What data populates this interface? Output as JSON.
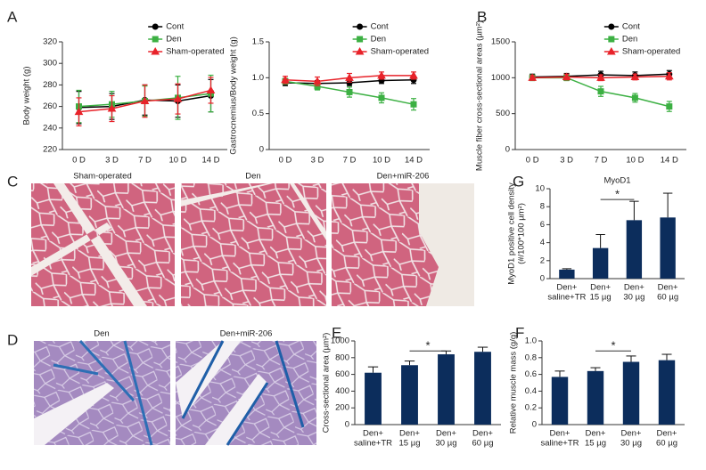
{
  "images": [
    {
      "panel": "C",
      "captions": [
        "Sham-operated",
        "Den",
        "Den+miR-206"
      ]
    },
    {
      "panel": "D",
      "captions": [
        "Den",
        "Den+miR-206"
      ]
    }
  ],
  "chart_data": [
    {
      "type": "line",
      "panel": "A",
      "ylabel": "Body weight (g)",
      "categories": [
        "0 D",
        "3 D",
        "7 D",
        "10 D",
        "14 D"
      ],
      "ylim": [
        220,
        320
      ],
      "yticks": [
        220,
        240,
        260,
        280,
        300,
        320
      ],
      "legend": "top",
      "series": [
        {
          "name": "Cont",
          "color": "#000000",
          "marker": "circle",
          "values": [
            259,
            260,
            266,
            265,
            270
          ],
          "errors": [
            15,
            12,
            14,
            15,
            15
          ]
        },
        {
          "name": "Den",
          "color": "#3cb043",
          "marker": "square",
          "values": [
            260,
            262,
            265,
            268,
            272
          ],
          "errors": [
            15,
            12,
            14,
            20,
            17
          ]
        },
        {
          "name": "Sham-operated",
          "color": "#e8232a",
          "marker": "triangle",
          "values": [
            255,
            258,
            265,
            267,
            275
          ],
          "errors": [
            13,
            12,
            15,
            14,
            12
          ]
        }
      ]
    },
    {
      "type": "line",
      "ylabel": "Gastrocnemius/Body weight (g)",
      "categories": [
        "0 D",
        "3 D",
        "7 D",
        "10 D",
        "14 D"
      ],
      "ylim": [
        0,
        1.5
      ],
      "yticks": [
        0,
        0.5,
        {
          "value": 1,
          "label": "1.0"
        },
        1.5
      ],
      "legend": "top",
      "series": [
        {
          "name": "Cont",
          "color": "#000000",
          "marker": "circle",
          "values": [
            0.93,
            0.92,
            0.93,
            0.96,
            0.97
          ],
          "errors": [
            0.04,
            0.04,
            0.04,
            0.04,
            0.05
          ]
        },
        {
          "name": "Den",
          "color": "#3cb043",
          "marker": "square",
          "values": [
            0.95,
            0.88,
            0.8,
            0.72,
            0.63
          ],
          "errors": [
            0.04,
            0.05,
            0.07,
            0.07,
            0.08
          ]
        },
        {
          "name": "Sham-operated",
          "color": "#e8232a",
          "marker": "triangle",
          "values": [
            0.97,
            0.95,
            1.0,
            1.03,
            1.03
          ],
          "errors": [
            0.05,
            0.06,
            0.06,
            0.05,
            0.05
          ]
        }
      ]
    },
    {
      "type": "line",
      "panel": "B",
      "ylabel": "Muscle fiber cross-sectional areas (µm²)",
      "categories": [
        "0 D",
        "3 D",
        "7 D",
        "10 D",
        "14 D"
      ],
      "ylim": [
        0,
        1500
      ],
      "yticks": [
        0,
        500,
        1000,
        1500
      ],
      "legend": "top",
      "series": [
        {
          "name": "Cont",
          "color": "#000000",
          "marker": "circle",
          "values": [
            1010,
            1020,
            1040,
            1030,
            1050
          ],
          "errors": [
            40,
            40,
            50,
            50,
            50
          ]
        },
        {
          "name": "Den",
          "color": "#3cb043",
          "marker": "square",
          "values": [
            1000,
            1000,
            810,
            720,
            600
          ],
          "errors": [
            40,
            40,
            70,
            60,
            70
          ]
        },
        {
          "name": "Sham-operated",
          "color": "#e8232a",
          "marker": "triangle",
          "values": [
            1000,
            1010,
            1000,
            1010,
            1020
          ],
          "errors": [
            30,
            40,
            40,
            40,
            50
          ]
        }
      ]
    },
    {
      "type": "bar",
      "panel": "G",
      "title": "MyoD1",
      "ylabel": [
        "MyoD1 positive cell density",
        "(#/100*100 µm²)"
      ],
      "categories": [
        [
          "Den+",
          "saline+TR"
        ],
        [
          "Den+",
          "15 µg"
        ],
        [
          "Den+",
          "30 µg"
        ],
        [
          "Den+",
          "60 µg"
        ]
      ],
      "values": [
        1.0,
        3.4,
        6.5,
        6.8
      ],
      "errors": [
        0.1,
        1.5,
        2.1,
        2.7
      ],
      "color": "#0c2d5c",
      "ylim": [
        0,
        10
      ],
      "yticks": [
        0,
        2,
        4,
        6,
        8,
        10
      ],
      "annotation": "*"
    },
    {
      "type": "bar",
      "panel": "E",
      "ylabel": "Cross-sectional area (µm²)",
      "categories": [
        [
          "Den+",
          "saline+TR"
        ],
        [
          "Den+",
          "15 µg"
        ],
        [
          "Den+",
          "30 µg"
        ],
        [
          "Den+",
          "60 µg"
        ]
      ],
      "values": [
        620,
        710,
        840,
        870
      ],
      "errors": [
        70,
        50,
        40,
        55
      ],
      "color": "#0c2d5c",
      "ylim": [
        0,
        1000
      ],
      "yticks": [
        0,
        200,
        400,
        600,
        800,
        1000
      ],
      "annotation": "*"
    },
    {
      "type": "bar",
      "panel": "F",
      "ylabel": "Relative muscle mass (g/g)",
      "categories": [
        [
          "Den+",
          "saline+TR"
        ],
        [
          "Den+",
          "15 µg"
        ],
        [
          "Den+",
          "30 µg"
        ],
        [
          "Den+",
          "60 µg"
        ]
      ],
      "values": [
        0.57,
        0.64,
        0.75,
        0.77
      ],
      "errors": [
        0.07,
        0.04,
        0.07,
        0.07
      ],
      "color": "#0c2d5c",
      "ylim": [
        0,
        1
      ],
      "yticks": [
        0,
        0.2,
        0.4,
        0.6,
        0.8,
        {
          "value": 1,
          "label": "1.0"
        }
      ],
      "annotation": "*"
    }
  ]
}
